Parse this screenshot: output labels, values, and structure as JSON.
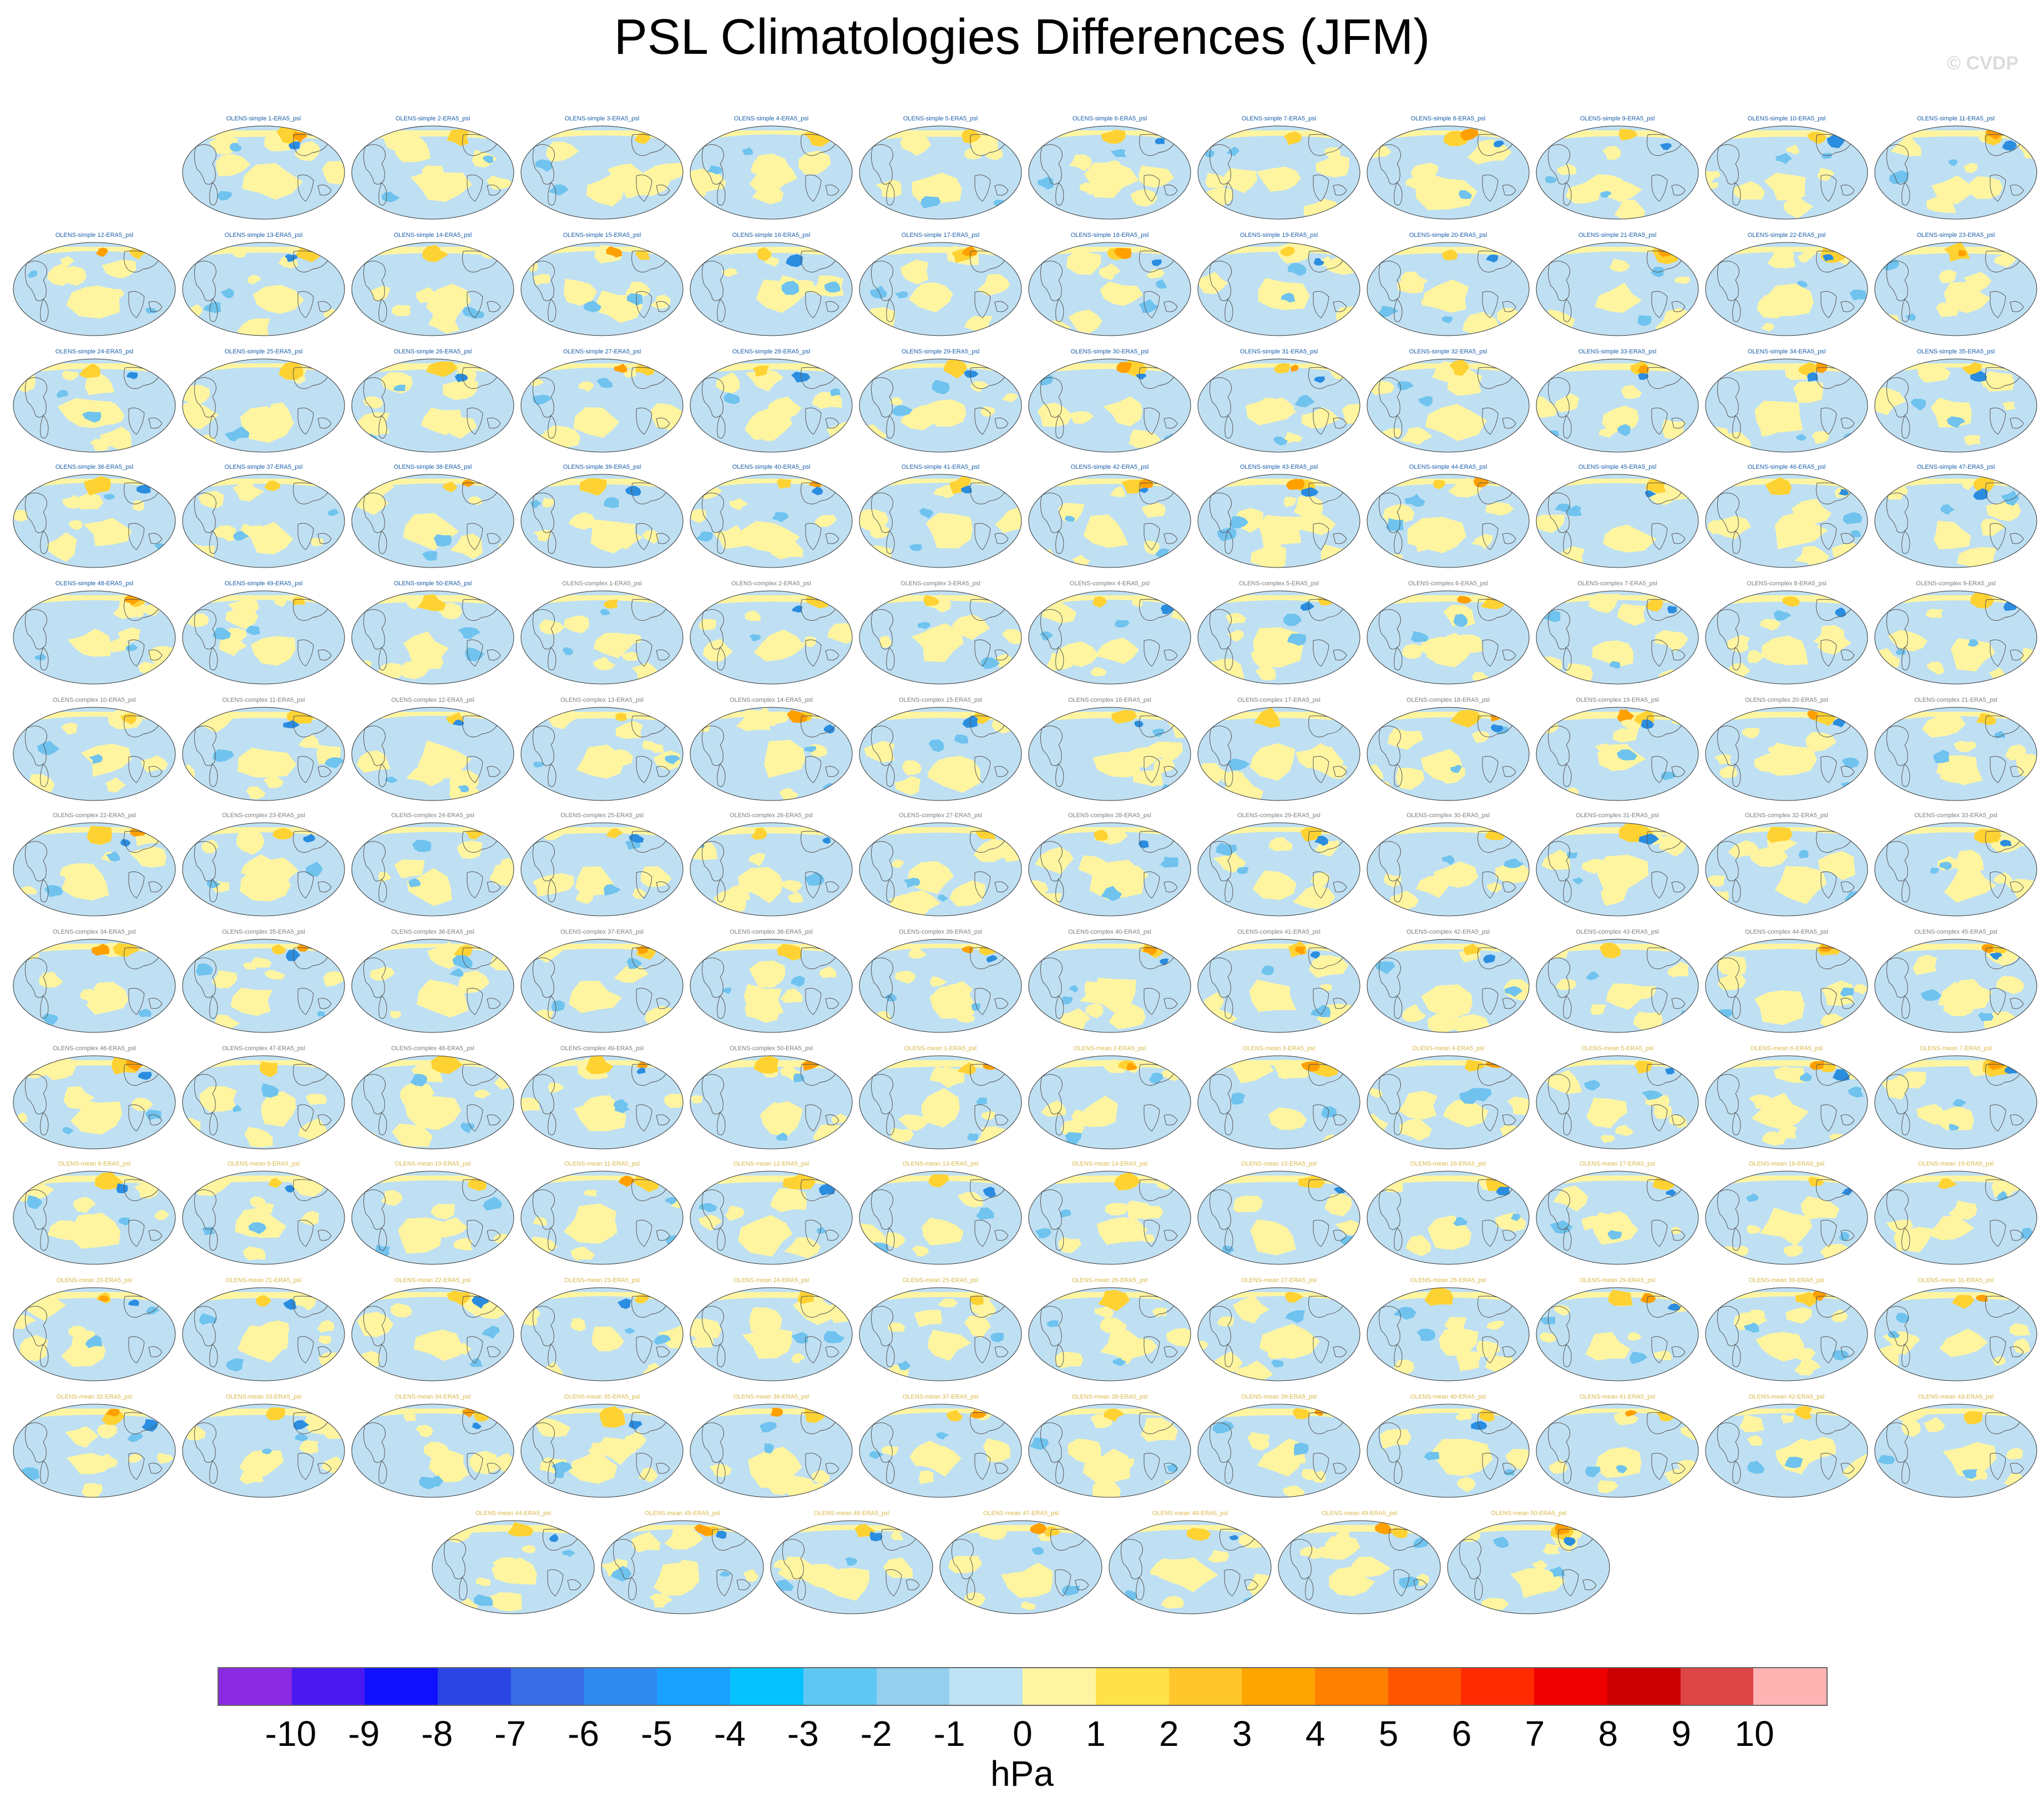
{
  "title": "PSL Climatologies Differences (JFM)",
  "watermark": "© CVDP",
  "units": "hPa",
  "colors": {
    "label_simple": "#1b5fa8",
    "label_complex": "#7f7f7f",
    "label_mean": "#d8b84a",
    "ocean_neg": "#bfe0f3",
    "pos_small": "#fff5a0",
    "pos_mid": "#ffd233",
    "pos_big": "#ffa000",
    "neg_mid": "#6fc3ee",
    "neg_big": "#2a8de0",
    "coast": "#555555",
    "frame": "#333333"
  },
  "colorbar": {
    "colors": [
      "#8a2be2",
      "#4a19f0",
      "#1010ff",
      "#2c46e6",
      "#3a6ee6",
      "#2f8aef",
      "#1aa0ff",
      "#05c1ff",
      "#5ec8f2",
      "#94cfee",
      "#bfe3f5",
      "#fff5a0",
      "#ffe14a",
      "#ffc72b",
      "#ffa500",
      "#ff7f00",
      "#ff5500",
      "#ff2a00",
      "#ee0000",
      "#cc0000",
      "#dd4444",
      "#ffb3b3"
    ],
    "ticks": [
      "-10",
      "-9",
      "-8",
      "-7",
      "-6",
      "-5",
      "-4",
      "-3",
      "-2",
      "-1",
      "0",
      "1",
      "2",
      "3",
      "4",
      "5",
      "6",
      "7",
      "8",
      "9",
      "10"
    ]
  },
  "panels": [
    "OLENS-simple 1-ERA5_psl",
    "OLENS-simple 2-ERA5_psl",
    "OLENS-simple 3-ERA5_psl",
    "OLENS-simple 4-ERA5_psl",
    "OLENS-simple 5-ERA5_psl",
    "OLENS-simple 6-ERA5_psl",
    "OLENS-simple 7-ERA5_psl",
    "OLENS-simple 8-ERA5_psl",
    "OLENS-simple 9-ERA5_psl",
    "OLENS-simple 10-ERA5_psl",
    "OLENS-simple 11-ERA5_psl",
    "OLENS-simple 12-ERA5_psl",
    "OLENS-simple 13-ERA5_psl",
    "OLENS-simple 14-ERA5_psl",
    "OLENS-simple 15-ERA5_psl",
    "OLENS-simple 16-ERA5_psl",
    "OLENS-simple 17-ERA5_psl",
    "OLENS-simple 18-ERA5_psl",
    "OLENS-simple 19-ERA5_psl",
    "OLENS-simple 20-ERA5_psl",
    "OLENS-simple 21-ERA5_psl",
    "OLENS-simple 22-ERA5_psl",
    "OLENS-simple 23-ERA5_psl",
    "OLENS-simple 24-ERA5_psl",
    "OLENS-simple 25-ERA5_psl",
    "OLENS-simple 26-ERA5_psl",
    "OLENS-simple 27-ERA5_psl",
    "OLENS-simple 28-ERA5_psl",
    "OLENS-simple 29-ERA5_psl",
    "OLENS-simple 30-ERA5_psl",
    "OLENS-simple 31-ERA5_psl",
    "OLENS-simple 32-ERA5_psl",
    "OLENS-simple 33-ERA5_psl",
    "OLENS-simple 34-ERA5_psl",
    "OLENS-simple 35-ERA5_psl",
    "OLENS-simple 36-ERA5_psl",
    "OLENS-simple 37-ERA5_psl",
    "OLENS-simple 38-ERA5_psl",
    "OLENS-simple 39-ERA5_psl",
    "OLENS-simple 40-ERA5_psl",
    "OLENS-simple 41-ERA5_psl",
    "OLENS-simple 42-ERA5_psl",
    "OLENS-simple 43-ERA5_psl",
    "OLENS-simple 44-ERA5_psl",
    "OLENS-simple 45-ERA5_psl",
    "OLENS-simple 46-ERA5_psl",
    "OLENS-simple 47-ERA5_psl",
    "OLENS-simple 48-ERA5_psl",
    "OLENS-simple 49-ERA5_psl",
    "OLENS-simple 50-ERA5_psl",
    "OLENS-complex 1-ERA5_psl",
    "OLENS-complex 2-ERA5_psl",
    "OLENS-complex 3-ERA5_psl",
    "OLENS-complex 4-ERA5_psl",
    "OLENS-complex 5-ERA5_psl",
    "OLENS-complex 6-ERA5_psl",
    "OLENS-complex 7-ERA5_psl",
    "OLENS-complex 8-ERA5_psl",
    "OLENS-complex 9-ERA5_psl",
    "OLENS-complex 10-ERA5_psl",
    "OLENS-complex 11-ERA5_psl",
    "OLENS-complex 12-ERA5_psl",
    "OLENS-complex 13-ERA5_psl",
    "OLENS-complex 14-ERA5_psl",
    "OLENS-complex 15-ERA5_psl",
    "OLENS-complex 16-ERA5_psl",
    "OLENS-complex 17-ERA5_psl",
    "OLENS-complex 18-ERA5_psl",
    "OLENS-complex 19-ERA5_psl",
    "OLENS-complex 20-ERA5_psl",
    "OLENS-complex 21-ERA5_psl",
    "OLENS-complex 22-ERA5_psl",
    "OLENS-complex 23-ERA5_psl",
    "OLENS-complex 24-ERA5_psl",
    "OLENS-complex 25-ERA5_psl",
    "OLENS-complex 26-ERA5_psl",
    "OLENS-complex 27-ERA5_psl",
    "OLENS-complex 28-ERA5_psl",
    "OLENS-complex 29-ERA5_psl",
    "OLENS-complex 30-ERA5_psl",
    "OLENS-complex 31-ERA5_psl",
    "OLENS-complex 32-ERA5_psl",
    "OLENS-complex 33-ERA5_psl",
    "OLENS-complex 34-ERA5_psl",
    "OLENS-complex 35-ERA5_psl",
    "OLENS-complex 36-ERA5_psl",
    "OLENS-complex 37-ERA5_psl",
    "OLENS-complex 38-ERA5_psl",
    "OLENS-complex 39-ERA5_psl",
    "OLENS-complex 40-ERA5_psl",
    "OLENS-complex 41-ERA5_psl",
    "OLENS-complex 42-ERA5_psl",
    "OLENS-complex 43-ERA5_psl",
    "OLENS-complex 44-ERA5_psl",
    "OLENS-complex 45-ERA5_psl",
    "OLENS-complex 46-ERA5_psl",
    "OLENS-complex 47-ERA5_psl",
    "OLENS-complex 48-ERA5_psl",
    "OLENS-complex 49-ERA5_psl",
    "OLENS-complex 50-ERA5_psl",
    "OLENS-mean 1-ERA5_psl",
    "OLENS-mean 2-ERA5_psl",
    "OLENS-mean 3-ERA5_psl",
    "OLENS-mean 4-ERA5_psl",
    "OLENS-mean 5-ERA5_psl",
    "OLENS-mean 6-ERA5_psl",
    "OLENS-mean 7-ERA5_psl",
    "OLENS-mean 8-ERA5_psl",
    "OLENS-mean 9-ERA5_psl",
    "OLENS-mean 10-ERA5_psl",
    "OLENS-mean 11-ERA5_psl",
    "OLENS-mean 12-ERA5_psl",
    "OLENS-mean 13-ERA5_psl",
    "OLENS-mean 14-ERA5_psl",
    "OLENS-mean 15-ERA5_psl",
    "OLENS-mean 16-ERA5_psl",
    "OLENS-mean 17-ERA5_psl",
    "OLENS-mean 18-ERA5_psl",
    "OLENS-mean 19-ERA5_psl",
    "OLENS-mean 20-ERA5_psl",
    "OLENS-mean 21-ERA5_psl",
    "OLENS-mean 22-ERA5_psl",
    "OLENS-mean 23-ERA5_psl",
    "OLENS-mean 24-ERA5_psl",
    "OLENS-mean 25-ERA5_psl",
    "OLENS-mean 26-ERA5_psl",
    "OLENS-mean 27-ERA5_psl",
    "OLENS-mean 28-ERA5_psl",
    "OLENS-mean 29-ERA5_psl",
    "OLENS-mean 30-ERA5_psl",
    "OLENS-mean 31-ERA5_psl",
    "OLENS-mean 32-ERA5_psl",
    "OLENS-mean 33-ERA5_psl",
    "OLENS-mean 34-ERA5_psl",
    "OLENS-mean 35-ERA5_psl",
    "OLENS-mean 36-ERA5_psl",
    "OLENS-mean 37-ERA5_psl",
    "OLENS-mean 38-ERA5_psl",
    "OLENS-mean 39-ERA5_psl",
    "OLENS-mean 40-ERA5_psl",
    "OLENS-mean 41-ERA5_psl",
    "OLENS-mean 42-ERA5_psl",
    "OLENS-mean 43-ERA5_psl",
    "OLENS-mean 44-ERA5_psl",
    "OLENS-mean 45-ERA5_psl",
    "OLENS-mean 46-ERA5_psl",
    "OLENS-mean 47-ERA5_psl",
    "OLENS-mean 48-ERA5_psl",
    "OLENS-mean 49-ERA5_psl",
    "OLENS-mean 50-ERA5_psl"
  ]
}
